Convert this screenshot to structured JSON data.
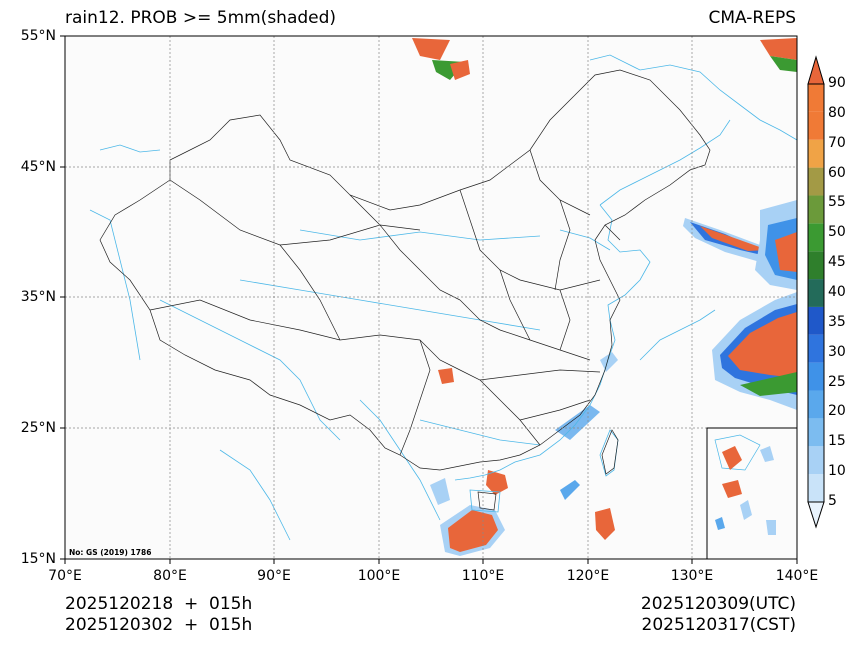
{
  "header": {
    "title_left": "rain12. PROB >= 5mm(shaded)",
    "title_right": "CMA-REPS"
  },
  "map": {
    "lat_labels": [
      "55°N",
      "45°N",
      "35°N",
      "25°N",
      "15°N"
    ],
    "lon_labels": [
      "70°E",
      "80°E",
      "90°E",
      "100°E",
      "110°E",
      "120°E",
      "130°E",
      "140°E"
    ],
    "source_note": "No: GS (2019) 1786",
    "colors": {
      "coast": "#4db8e8",
      "border": "#222222",
      "grid": "#888888"
    }
  },
  "colorbar": {
    "levels": [
      "5",
      "10",
      "15",
      "20",
      "25",
      "30",
      "35",
      "40",
      "45",
      "50",
      "55",
      "60",
      "70",
      "80",
      "90"
    ],
    "colors": [
      "#e8f3fd",
      "#c9e3f9",
      "#a8d1f5",
      "#7cbcf0",
      "#5aa8ec",
      "#3f92e8",
      "#2f74de",
      "#1f58c9",
      "#236b5a",
      "#2f7f2c",
      "#3b9a32",
      "#6b9a3a",
      "#a39a45",
      "#f0a346",
      "#f07a36",
      "#e8663a"
    ]
  },
  "footer": {
    "init_time": "2025120218  +  015h",
    "init_time_cst": "2025120302  +  015h",
    "valid_utc": "2025120309(UTC)",
    "valid_cst": "2025120317(CST)"
  }
}
